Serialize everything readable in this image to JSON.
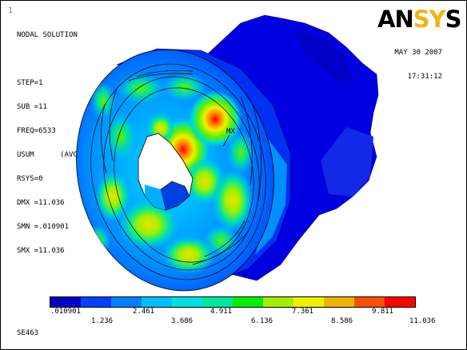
{
  "window": {
    "number": "1"
  },
  "info": {
    "lines": [
      "NODAL SOLUTION",
      "",
      "STEP=1",
      "SUB =11",
      "FREQ=6533",
      "USUM      (AVG)",
      "RSYS=0",
      "DMX =11.036",
      "SMN =.010901",
      "SMX =11.036"
    ]
  },
  "logo": {
    "part1": "AN",
    "part2": "SY",
    "part3": "S"
  },
  "date": {
    "date": "MAY 30 2007",
    "time": "17:31:12"
  },
  "model_markers": {
    "max_label": "MX"
  },
  "legend": {
    "colors": [
      "#0000c8",
      "#0040ff",
      "#0080ff",
      "#00bfff",
      "#00e0e0",
      "#00e89c",
      "#00f000",
      "#a0f000",
      "#f0f000",
      "#f0b400",
      "#ff5000",
      "#ff0000"
    ],
    "top_ticks": [
      ".010901",
      "2.461",
      "4.911",
      "7.361",
      "9.811"
    ],
    "bottom_ticks": [
      "1.236",
      "3.686",
      "6.136",
      "8.586",
      "11.036"
    ]
  },
  "plot_id": "SE463"
}
